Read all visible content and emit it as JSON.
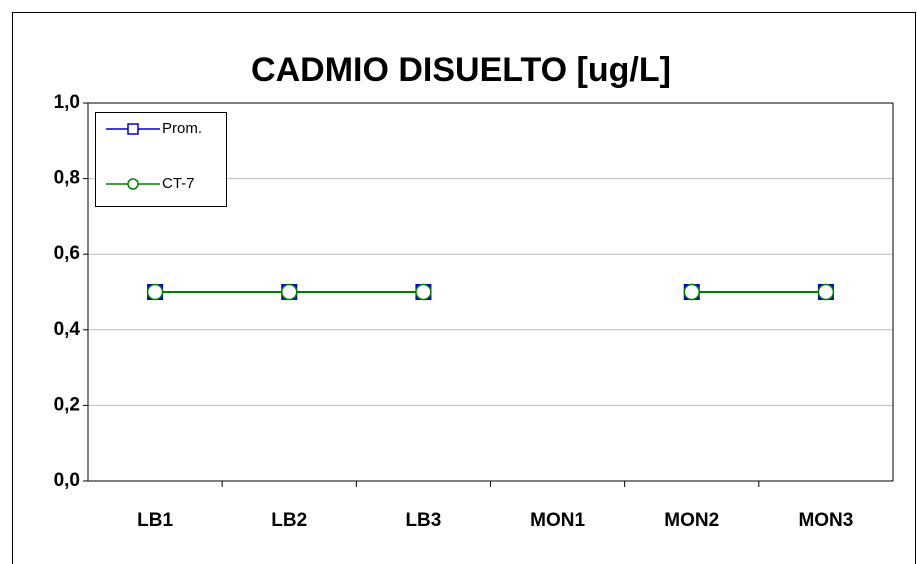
{
  "chart_data": {
    "type": "line",
    "title": "CADMIO DISUELTO [ug/L]",
    "categories": [
      "LB1",
      "LB2",
      "LB3",
      "MON1",
      "MON2",
      "MON3"
    ],
    "series": [
      {
        "name": "Prom.",
        "color": "#0000cc",
        "marker": "square",
        "values": [
          0.5,
          0.5,
          0.5,
          null,
          0.5,
          0.5
        ]
      },
      {
        "name": "CT-7",
        "color": "#008000",
        "marker": "circle",
        "values": [
          0.5,
          0.5,
          0.5,
          null,
          0.5,
          0.5
        ]
      }
    ],
    "ylim": [
      0,
      1
    ],
    "yticks": [
      {
        "value": 0,
        "label": "0,0"
      },
      {
        "value": 0.2,
        "label": "0,2"
      },
      {
        "value": 0.4,
        "label": "0,4"
      },
      {
        "value": 0.6,
        "label": "0,6"
      },
      {
        "value": 0.8,
        "label": "0,8"
      },
      {
        "value": 1,
        "label": "1,0"
      }
    ],
    "grid": true,
    "legend": "upper left"
  }
}
